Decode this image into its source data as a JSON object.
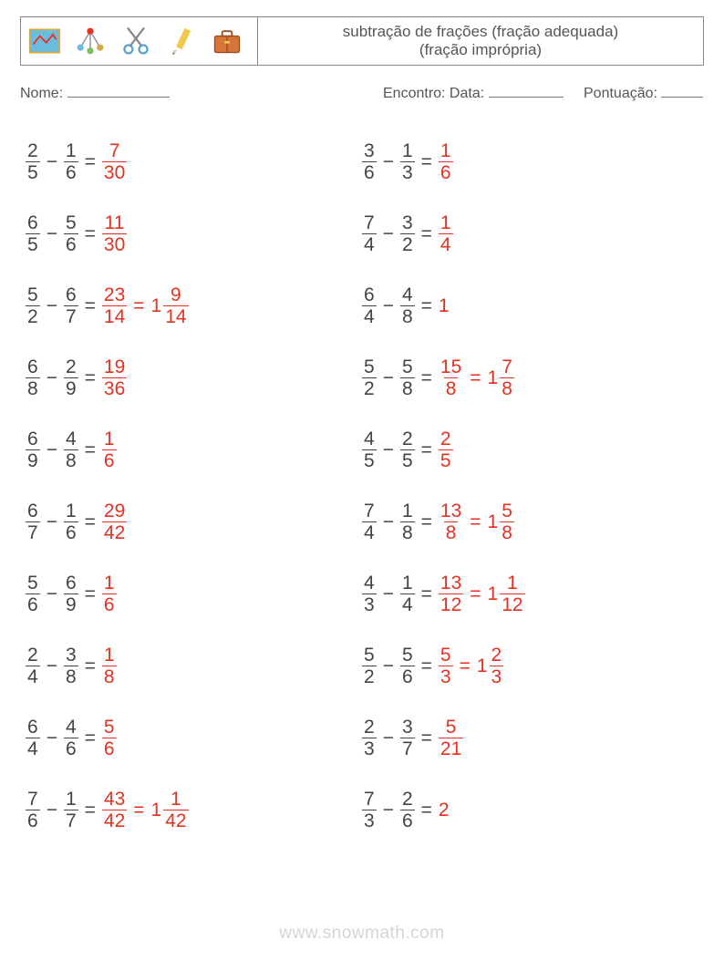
{
  "header": {
    "title_line1": "subtração de frações (fração adequada)",
    "title_line2": "(fração imprópria)"
  },
  "info": {
    "name_label": "Nome:",
    "name_blank_width": 112,
    "date_label": "Encontro: Data:",
    "date_blank_width": 82,
    "score_label": "Pontuação:",
    "score_blank_width": 46
  },
  "colors": {
    "text": "#444444",
    "answer": "#e8301f",
    "border": "#888888",
    "watermark": "rgba(120,120,120,0.32)"
  },
  "fonts": {
    "body_size": 21,
    "info_size": 16,
    "title_size": 17
  },
  "left_column": [
    {
      "a": {
        "n": 2,
        "d": 5
      },
      "b": {
        "n": 1,
        "d": 6
      },
      "ans": {
        "type": "frac",
        "n": 7,
        "d": 30
      }
    },
    {
      "a": {
        "n": 6,
        "d": 5
      },
      "b": {
        "n": 5,
        "d": 6
      },
      "ans": {
        "type": "frac",
        "n": 11,
        "d": 30
      }
    },
    {
      "a": {
        "n": 5,
        "d": 2
      },
      "b": {
        "n": 6,
        "d": 7
      },
      "ans": {
        "type": "both",
        "n": 23,
        "d": 14,
        "w": 1,
        "mn": 9,
        "md": 14
      }
    },
    {
      "a": {
        "n": 6,
        "d": 8
      },
      "b": {
        "n": 2,
        "d": 9
      },
      "ans": {
        "type": "frac",
        "n": 19,
        "d": 36
      }
    },
    {
      "a": {
        "n": 6,
        "d": 9
      },
      "b": {
        "n": 4,
        "d": 8
      },
      "ans": {
        "type": "frac",
        "n": 1,
        "d": 6
      }
    },
    {
      "a": {
        "n": 6,
        "d": 7
      },
      "b": {
        "n": 1,
        "d": 6
      },
      "ans": {
        "type": "frac",
        "n": 29,
        "d": 42
      }
    },
    {
      "a": {
        "n": 5,
        "d": 6
      },
      "b": {
        "n": 6,
        "d": 9
      },
      "ans": {
        "type": "frac",
        "n": 1,
        "d": 6
      }
    },
    {
      "a": {
        "n": 2,
        "d": 4
      },
      "b": {
        "n": 3,
        "d": 8
      },
      "ans": {
        "type": "frac",
        "n": 1,
        "d": 8
      }
    },
    {
      "a": {
        "n": 6,
        "d": 4
      },
      "b": {
        "n": 4,
        "d": 6
      },
      "ans": {
        "type": "frac",
        "n": 5,
        "d": 6
      }
    },
    {
      "a": {
        "n": 7,
        "d": 6
      },
      "b": {
        "n": 1,
        "d": 7
      },
      "ans": {
        "type": "both",
        "n": 43,
        "d": 42,
        "w": 1,
        "mn": 1,
        "md": 42
      }
    }
  ],
  "right_column": [
    {
      "a": {
        "n": 3,
        "d": 6
      },
      "b": {
        "n": 1,
        "d": 3
      },
      "ans": {
        "type": "frac",
        "n": 1,
        "d": 6
      }
    },
    {
      "a": {
        "n": 7,
        "d": 4
      },
      "b": {
        "n": 3,
        "d": 2
      },
      "ans": {
        "type": "frac",
        "n": 1,
        "d": 4
      }
    },
    {
      "a": {
        "n": 6,
        "d": 4
      },
      "b": {
        "n": 4,
        "d": 8
      },
      "ans": {
        "type": "int",
        "v": 1
      }
    },
    {
      "a": {
        "n": 5,
        "d": 2
      },
      "b": {
        "n": 5,
        "d": 8
      },
      "ans": {
        "type": "both",
        "n": 15,
        "d": 8,
        "w": 1,
        "mn": 7,
        "md": 8
      }
    },
    {
      "a": {
        "n": 4,
        "d": 5
      },
      "b": {
        "n": 2,
        "d": 5
      },
      "ans": {
        "type": "frac",
        "n": 2,
        "d": 5
      }
    },
    {
      "a": {
        "n": 7,
        "d": 4
      },
      "b": {
        "n": 1,
        "d": 8
      },
      "ans": {
        "type": "both",
        "n": 13,
        "d": 8,
        "w": 1,
        "mn": 5,
        "md": 8
      }
    },
    {
      "a": {
        "n": 4,
        "d": 3
      },
      "b": {
        "n": 1,
        "d": 4
      },
      "ans": {
        "type": "both",
        "n": 13,
        "d": 12,
        "w": 1,
        "mn": 1,
        "md": 12
      }
    },
    {
      "a": {
        "n": 5,
        "d": 2
      },
      "b": {
        "n": 5,
        "d": 6
      },
      "ans": {
        "type": "both",
        "n": 5,
        "d": 3,
        "w": 1,
        "mn": 2,
        "md": 3
      }
    },
    {
      "a": {
        "n": 2,
        "d": 3
      },
      "b": {
        "n": 3,
        "d": 7
      },
      "ans": {
        "type": "frac",
        "n": 5,
        "d": 21
      }
    },
    {
      "a": {
        "n": 7,
        "d": 3
      },
      "b": {
        "n": 2,
        "d": 6
      },
      "ans": {
        "type": "int",
        "v": 2
      }
    }
  ],
  "operator": "−",
  "equals": "=",
  "watermark": "www.snowmath.com"
}
